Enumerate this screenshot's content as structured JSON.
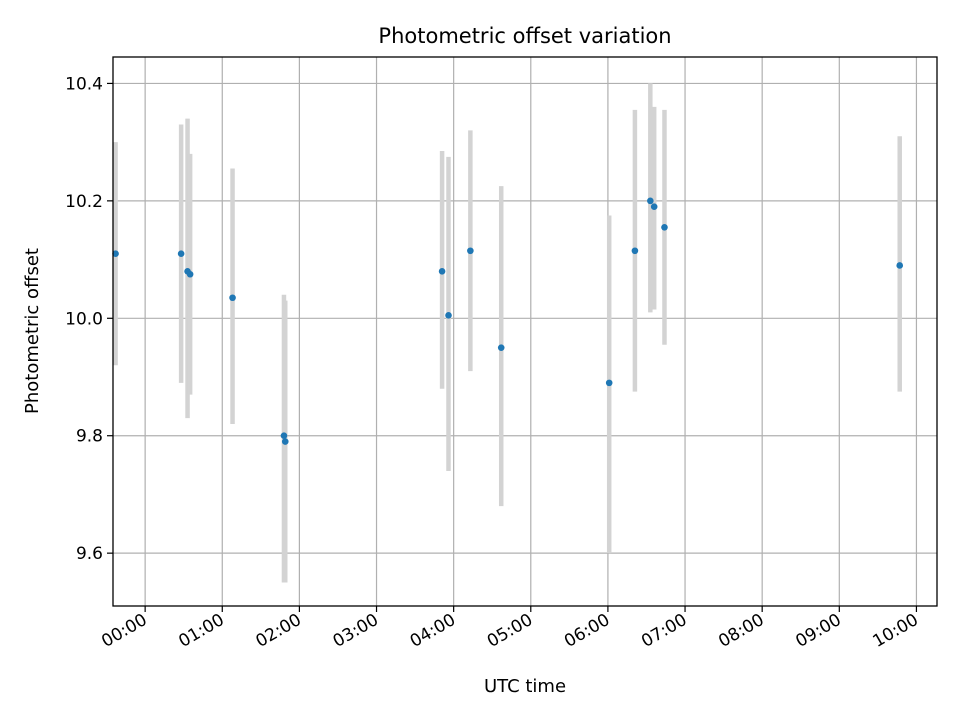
{
  "chart_data": {
    "type": "scatter",
    "title": "Photometric offset variation",
    "xlabel": "UTC time",
    "ylabel": "Photometric offset",
    "xlim": [
      "-00:25",
      "10:16"
    ],
    "ylim": [
      9.51,
      10.445
    ],
    "grid": true,
    "xticks": [
      "00:00",
      "01:00",
      "02:00",
      "03:00",
      "04:00",
      "05:00",
      "06:00",
      "07:00",
      "08:00",
      "09:00",
      "10:00"
    ],
    "yticks": [
      9.6,
      9.8,
      10.0,
      10.2,
      10.4
    ],
    "ytick_labels": [
      "9.6",
      "9.8",
      "10.0",
      "10.2",
      "10.4"
    ],
    "marker_color": "#1f77b4",
    "errorbar_color": "#d3d3d3",
    "points": [
      {
        "x": "-00:23",
        "y": 10.11,
        "err_low": 9.92,
        "err_high": 10.3
      },
      {
        "x": "00:28",
        "y": 10.11,
        "err_low": 9.89,
        "err_high": 10.33
      },
      {
        "x": "00:33",
        "y": 10.08,
        "err_low": 9.83,
        "err_high": 10.34
      },
      {
        "x": "00:35",
        "y": 10.075,
        "err_low": 9.87,
        "err_high": 10.28
      },
      {
        "x": "01:08",
        "y": 10.035,
        "err_low": 9.82,
        "err_high": 10.255
      },
      {
        "x": "01:48",
        "y": 9.8,
        "err_low": 9.55,
        "err_high": 10.04
      },
      {
        "x": "01:49",
        "y": 9.79,
        "err_low": 9.55,
        "err_high": 10.03
      },
      {
        "x": "03:51",
        "y": 10.08,
        "err_low": 9.88,
        "err_high": 10.285
      },
      {
        "x": "03:56",
        "y": 10.005,
        "err_low": 9.74,
        "err_high": 10.275
      },
      {
        "x": "04:13",
        "y": 10.115,
        "err_low": 9.91,
        "err_high": 10.32
      },
      {
        "x": "04:37",
        "y": 9.95,
        "err_low": 9.68,
        "err_high": 10.225
      },
      {
        "x": "06:01",
        "y": 9.89,
        "err_low": 9.6,
        "err_high": 10.175
      },
      {
        "x": "06:21",
        "y": 10.115,
        "err_low": 9.875,
        "err_high": 10.355
      },
      {
        "x": "06:33",
        "y": 10.2,
        "err_low": 10.01,
        "err_high": 10.4
      },
      {
        "x": "06:36",
        "y": 10.19,
        "err_low": 10.015,
        "err_high": 10.36
      },
      {
        "x": "06:44",
        "y": 10.155,
        "err_low": 9.955,
        "err_high": 10.355
      },
      {
        "x": "09:47",
        "y": 10.09,
        "err_low": 9.875,
        "err_high": 10.31
      }
    ]
  }
}
